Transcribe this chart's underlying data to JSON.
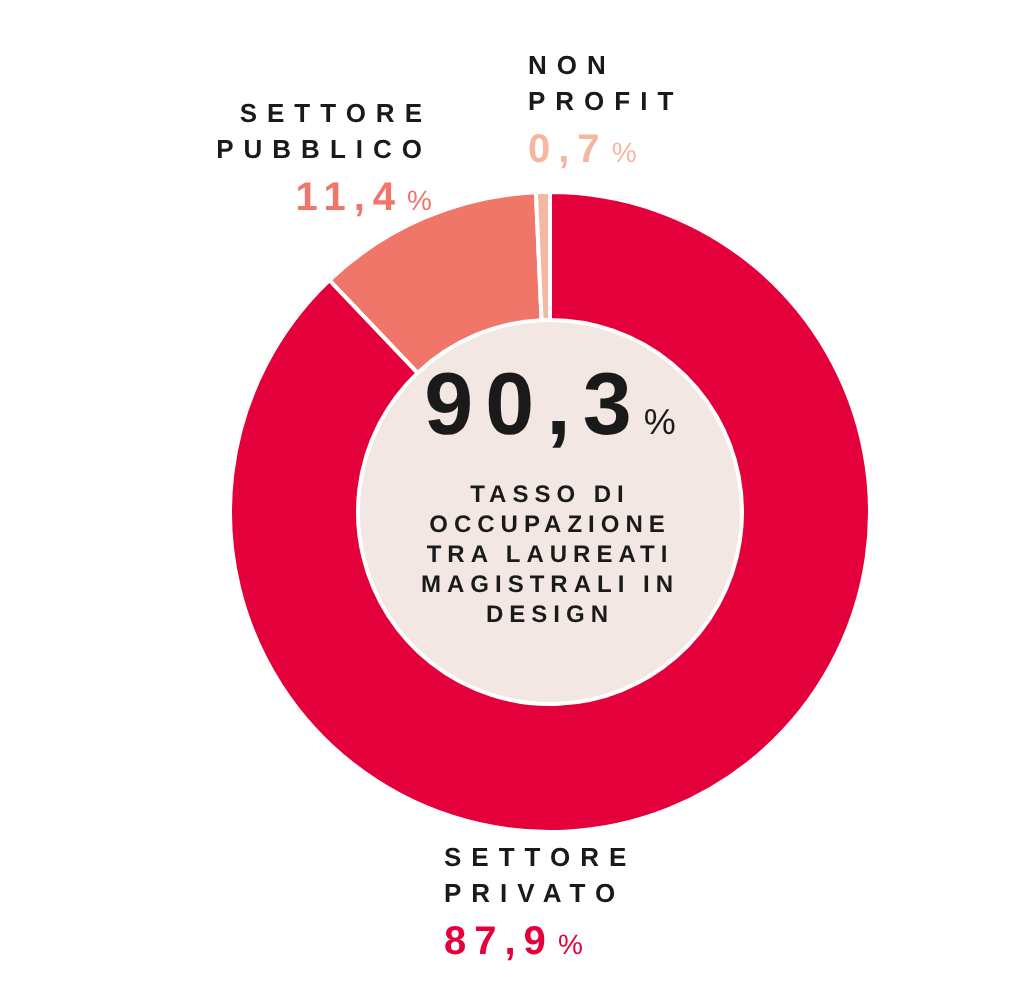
{
  "chart_data": {
    "type": "donut",
    "categories": [
      "SETTORE PRIVATO",
      "SETTORE PUBBLICO",
      "NON PROFIT"
    ],
    "values": [
      87.9,
      11.4,
      0.7
    ],
    "colors": [
      "#e4003b",
      "#f0766a",
      "#f4b8a2"
    ],
    "value_labels": [
      "87,9%",
      "11,4%",
      "0,7%"
    ],
    "annotations": [
      "90,3%",
      "TASSO DI OCCUPAZIONE TRA LAUREATI MAGISTRALI IN DESIGN"
    ],
    "legend": false
  }
}
